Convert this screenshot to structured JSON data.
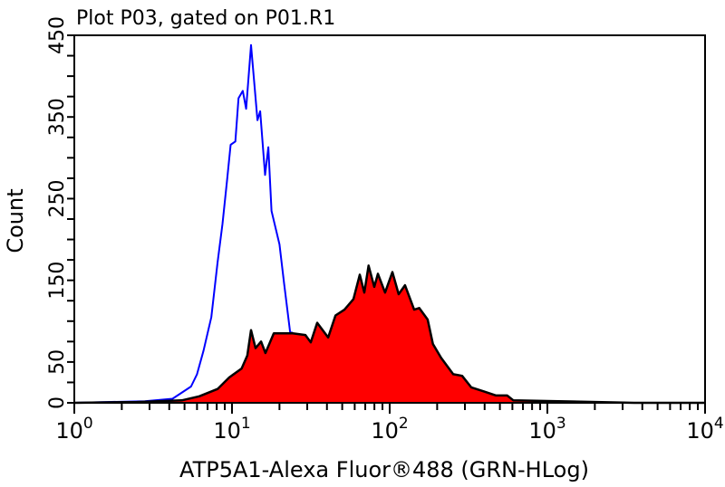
{
  "chart_data": {
    "type": "area",
    "title": "Plot P03, gated on P01.R1",
    "xlabel": "ATP5A1-Alexa Fluor®488 (GRN-HLog)",
    "ylabel": "Count",
    "xscale": "log",
    "xlim": [
      1,
      10000
    ],
    "ylim": [
      0,
      450
    ],
    "grid": false,
    "x_tick_labels": [
      {
        "base": "10",
        "exp": "0",
        "value": 1
      },
      {
        "base": "10",
        "exp": "1",
        "value": 10
      },
      {
        "base": "10",
        "exp": "2",
        "value": 100
      },
      {
        "base": "10",
        "exp": "3",
        "value": 1000
      },
      {
        "base": "10",
        "exp": "4",
        "value": 10000
      }
    ],
    "y_tick_labels": [
      "0",
      "50",
      "150",
      "250",
      "350",
      "450"
    ],
    "series": [
      {
        "style": "outline",
        "color": "#0000ff",
        "points": [
          [
            1,
            0
          ],
          [
            2.8,
            2
          ],
          [
            4.2,
            5
          ],
          [
            5.5,
            20
          ],
          [
            6.0,
            35
          ],
          [
            6.6,
            64
          ],
          [
            7.4,
            105
          ],
          [
            8.1,
            172
          ],
          [
            8.7,
            219
          ],
          [
            9.3,
            272
          ],
          [
            9.8,
            316
          ],
          [
            10.5,
            320
          ],
          [
            11.0,
            373
          ],
          [
            11.7,
            382
          ],
          [
            12.3,
            360
          ],
          [
            13.2,
            438
          ],
          [
            14.5,
            346
          ],
          [
            15.1,
            357
          ],
          [
            16.2,
            279
          ],
          [
            17.0,
            313
          ],
          [
            17.8,
            235
          ],
          [
            20.0,
            194
          ],
          [
            21.4,
            146
          ],
          [
            23.4,
            86
          ],
          [
            24.0,
            86
          ],
          [
            34.7,
            40
          ],
          [
            67.6,
            15
          ],
          [
            129,
            5
          ],
          [
            331,
            2
          ],
          [
            1230,
            1
          ],
          [
            3000,
            0
          ]
        ]
      },
      {
        "style": "filled",
        "color": "#ff0000",
        "outline": "#000000",
        "points": [
          [
            1,
            0
          ],
          [
            2.5,
            1
          ],
          [
            4.8,
            3
          ],
          [
            6.2,
            8
          ],
          [
            8.1,
            17
          ],
          [
            9.6,
            31
          ],
          [
            11.5,
            42
          ],
          [
            12.5,
            58
          ],
          [
            13.2,
            89
          ],
          [
            14.1,
            67
          ],
          [
            15.3,
            75
          ],
          [
            16.3,
            61
          ],
          [
            18.4,
            85
          ],
          [
            21.3,
            85
          ],
          [
            24.3,
            85
          ],
          [
            29.2,
            83
          ],
          [
            31.6,
            74
          ],
          [
            34.7,
            98
          ],
          [
            40.7,
            80
          ],
          [
            45.3,
            107
          ],
          [
            51.7,
            114
          ],
          [
            58.9,
            127
          ],
          [
            64.6,
            157
          ],
          [
            69.0,
            135
          ],
          [
            73.5,
            168
          ],
          [
            79.9,
            142
          ],
          [
            84.2,
            158
          ],
          [
            93.5,
            135
          ],
          [
            104,
            160
          ],
          [
            114,
            133
          ],
          [
            125,
            144
          ],
          [
            143,
            114
          ],
          [
            154,
            116
          ],
          [
            174,
            102
          ],
          [
            188,
            72
          ],
          [
            212,
            55
          ],
          [
            253,
            35
          ],
          [
            288,
            33
          ],
          [
            329,
            19
          ],
          [
            396,
            14
          ],
          [
            473,
            9
          ],
          [
            556,
            9
          ],
          [
            609,
            3
          ],
          [
            1180,
            2
          ],
          [
            3550,
            0
          ],
          [
            10000,
            0
          ]
        ]
      }
    ]
  }
}
